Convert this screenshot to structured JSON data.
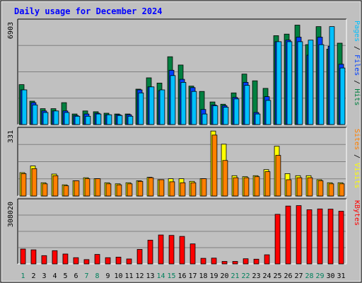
{
  "chart_data": {
    "type": "bar",
    "title": "Daily usage for December 2024",
    "colors": {
      "hits": "#008040",
      "files": "#0040FF",
      "pages": "#00C0FF",
      "visits": "#FFFF00",
      "sites": "#FF8000",
      "kbytes": "#FF0000",
      "title": "#0000FF",
      "weekend": "#00805C",
      "panel": "#C0C0C0",
      "frame": "#808080"
    },
    "categories": [
      "1",
      "2",
      "3",
      "4",
      "5",
      "6",
      "7",
      "8",
      "9",
      "10",
      "11",
      "12",
      "13",
      "14",
      "15",
      "16",
      "17",
      "18",
      "19",
      "20",
      "21",
      "22",
      "23",
      "24",
      "25",
      "26",
      "27",
      "28",
      "29",
      "30",
      "31"
    ],
    "weekend_days": [
      "1",
      "7",
      "8",
      "14",
      "15",
      "21",
      "22",
      "28",
      "29"
    ],
    "panels": [
      {
        "id": "hits",
        "ymax_label": "6903",
        "ylim": [
          0,
          6903
        ],
        "grid": true,
        "legend": [
          {
            "text": "Pages",
            "color": "#00C0FF"
          },
          {
            "text": " / ",
            "color": "#000000"
          },
          {
            "text": "Files",
            "color": "#0040FF"
          },
          {
            "text": " / ",
            "color": "#000000"
          },
          {
            "text": "Hits",
            "color": "#008040"
          }
        ],
        "series": [
          {
            "name": "Hits",
            "color": "#008040",
            "values": [
              2650,
              1550,
              1050,
              1050,
              1450,
              700,
              900,
              850,
              750,
              700,
              700,
              2350,
              3100,
              2750,
              4500,
              3950,
              2550,
              2200,
              1500,
              1350,
              2100,
              3350,
              2900,
              2400,
              5900,
              6000,
              6600,
              5300,
              6500,
              5000,
              5400
            ]
          },
          {
            "name": "Files",
            "color": "#0040FF",
            "values": [
              2300,
              1450,
              900,
              900,
              900,
              600,
              700,
              750,
              650,
              650,
              650,
              2300,
              2500,
              2250,
              3600,
              3000,
              2450,
              1000,
              1300,
              1250,
              1800,
              2800,
              800,
              1850,
              5500,
              5600,
              5800,
              4600,
              5800,
              5200,
              4000
            ]
          },
          {
            "name": "Pages",
            "color": "#00C0FF",
            "values": [
              2300,
              1300,
              800,
              900,
              800,
              550,
              550,
              700,
              650,
              600,
              550,
              2100,
              2500,
              2300,
              3250,
              2800,
              2200,
              700,
              1250,
              1150,
              1700,
              2600,
              700,
              1600,
              5500,
              5500,
              5500,
              5600,
              5300,
              6500,
              3750
            ]
          }
        ]
      },
      {
        "id": "visits",
        "ymax_label": "331",
        "ylim": [
          0,
          331
        ],
        "grid": true,
        "legend": [
          {
            "text": "Sites",
            "color": "#FF8000"
          },
          {
            "text": " / ",
            "color": "#000000"
          },
          {
            "text": "Visits",
            "color": "#FFFF00"
          }
        ],
        "series": [
          {
            "name": "Visits",
            "color": "#FFFF00",
            "values": [
              115,
              148,
              65,
              108,
              55,
              75,
              90,
              85,
              65,
              60,
              65,
              75,
              92,
              80,
              85,
              85,
              72,
              85,
              320,
              255,
              100,
              95,
              100,
              130,
              245,
              110,
              100,
              100,
              80,
              65,
              65
            ]
          },
          {
            "name": "Sites",
            "color": "#FF8000",
            "values": [
              110,
              135,
              60,
              100,
              50,
              75,
              85,
              85,
              60,
              55,
              60,
              72,
              90,
              80,
              70,
              65,
              65,
              85,
              300,
              175,
              90,
              90,
              95,
              120,
              200,
              80,
              90,
              90,
              75,
              60,
              60
            ]
          }
        ]
      },
      {
        "id": "kbytes",
        "ymax_label": "308020",
        "ylim": [
          0,
          308020
        ],
        "grid": true,
        "legend": [
          {
            "text": "KBytes",
            "color": "#FF0000"
          }
        ],
        "series": [
          {
            "name": "KBytes",
            "color": "#FF0000",
            "values": [
              72000,
              68000,
              40000,
              64000,
              48000,
              30000,
              21000,
              46000,
              30000,
              33000,
              24000,
              70000,
              115000,
              140000,
              138000,
              133000,
              97000,
              27000,
              28000,
              12000,
              12000,
              25000,
              23000,
              44000,
              240000,
              280000,
              282000,
              262000,
              266000,
              265000,
              255000
            ]
          }
        ]
      }
    ]
  }
}
